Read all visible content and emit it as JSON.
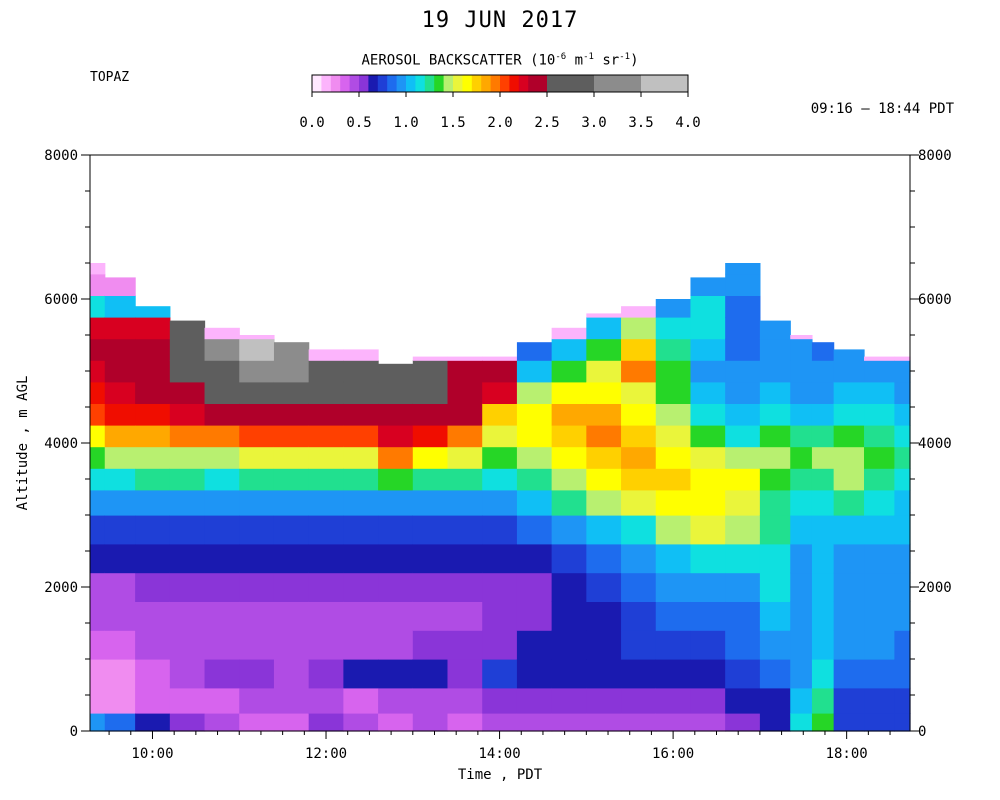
{
  "title": "19 JUN 2017",
  "site": "TOPAZ",
  "time_range": "09:16 – 18:44 PDT",
  "colorbar": {
    "title_main": "AEROSOL BACKSCATTER (10",
    "title_exp1": "-6",
    "title_mid": " m",
    "title_exp2": "-1",
    "title_mid2": " sr",
    "title_exp3": "-1",
    "title_end": ")",
    "tick_labels": [
      "0.0",
      "0.5",
      "1.0",
      "1.5",
      "2.0",
      "2.5",
      "3.0",
      "3.5",
      "4.0"
    ],
    "bins": [
      {
        "lo": 0.0,
        "hi": 0.1,
        "color": "#ffe8ff"
      },
      {
        "lo": 0.1,
        "hi": 0.2,
        "color": "#fcb4fc"
      },
      {
        "lo": 0.2,
        "hi": 0.3,
        "color": "#f08cf0"
      },
      {
        "lo": 0.3,
        "hi": 0.4,
        "color": "#d764ee"
      },
      {
        "lo": 0.4,
        "hi": 0.5,
        "color": "#b04ce4"
      },
      {
        "lo": 0.5,
        "hi": 0.6,
        "color": "#8a35d8"
      },
      {
        "lo": 0.6,
        "hi": 0.7,
        "color": "#1a1ab0"
      },
      {
        "lo": 0.7,
        "hi": 0.8,
        "color": "#1f3fd6"
      },
      {
        "lo": 0.8,
        "hi": 0.9,
        "color": "#1e6cee"
      },
      {
        "lo": 0.9,
        "hi": 1.0,
        "color": "#1e95f5"
      },
      {
        "lo": 1.0,
        "hi": 1.1,
        "color": "#10bff5"
      },
      {
        "lo": 1.1,
        "hi": 1.2,
        "color": "#0fe0e0"
      },
      {
        "lo": 1.2,
        "hi": 1.3,
        "color": "#21e08f"
      },
      {
        "lo": 1.3,
        "hi": 1.4,
        "color": "#26d626"
      },
      {
        "lo": 1.4,
        "hi": 1.5,
        "color": "#b8f070"
      },
      {
        "lo": 1.5,
        "hi": 1.6,
        "color": "#eaf53b"
      },
      {
        "lo": 1.6,
        "hi": 1.7,
        "color": "#ffff00"
      },
      {
        "lo": 1.7,
        "hi": 1.8,
        "color": "#ffd000"
      },
      {
        "lo": 1.8,
        "hi": 1.9,
        "color": "#ffa800"
      },
      {
        "lo": 1.9,
        "hi": 2.0,
        "color": "#ff7a00"
      },
      {
        "lo": 2.0,
        "hi": 2.1,
        "color": "#ff4000"
      },
      {
        "lo": 2.1,
        "hi": 2.2,
        "color": "#f00d00"
      },
      {
        "lo": 2.2,
        "hi": 2.3,
        "color": "#d80020"
      },
      {
        "lo": 2.3,
        "hi": 2.5,
        "color": "#b0002a"
      },
      {
        "lo": 2.5,
        "hi": 3.0,
        "color": "#5e5e5e"
      },
      {
        "lo": 3.0,
        "hi": 3.5,
        "color": "#8c8c8c"
      },
      {
        "lo": 3.5,
        "hi": 4.0,
        "color": "#c0c0c0"
      }
    ]
  },
  "chart_data": {
    "type": "heatmap",
    "title": "19 JUN 2017",
    "xlabel": "Time , PDT",
    "ylabel": "Altitude , m AGL",
    "x_range_hours": [
      9.28,
      18.73
    ],
    "x_ticks": [
      "10:00",
      "12:00",
      "14:00",
      "16:00",
      "18:00"
    ],
    "x_tick_hours": [
      10,
      12,
      14,
      16,
      18
    ],
    "y_range_m": [
      0,
      8000
    ],
    "y_ticks": [
      0,
      2000,
      4000,
      6000,
      8000
    ],
    "y_tick_labels": [
      "0",
      "2000",
      "4000",
      "6000",
      "8000"
    ],
    "value_units": "10^-6 m^-1 sr^-1",
    "profile_times": [
      9.3,
      9.6,
      10.0,
      10.4,
      10.8,
      11.2,
      11.6,
      12.0,
      12.4,
      12.8,
      13.2,
      13.6,
      14.0,
      14.4,
      14.8,
      15.2,
      15.6,
      16.0,
      16.4,
      16.8,
      17.2,
      17.5,
      17.7,
      18.0,
      18.4,
      18.7
    ],
    "data_top_m": [
      6500,
      6300,
      5900,
      5700,
      5600,
      5500,
      5400,
      5300,
      5300,
      5100,
      5200,
      5200,
      5200,
      5400,
      5600,
      5800,
      5900,
      6000,
      6300,
      6500,
      5700,
      5500,
      5400,
      5300,
      5200,
      5200
    ],
    "height_levels_m": [
      100,
      400,
      800,
      1200,
      1600,
      2000,
      2400,
      2800,
      3200,
      3500,
      3800,
      4100,
      4400,
      4700,
      5000,
      5300,
      5600,
      5900,
      6200,
      6500
    ],
    "backscatter_profiles": [
      [
        0.9,
        0.2,
        0.2,
        0.3,
        0.4,
        0.4,
        0.6,
        0.7,
        0.9,
        1.1,
        1.3,
        1.6,
        2.0,
        2.1,
        2.2,
        2.3,
        2.2,
        1.1,
        0.2,
        0.1
      ],
      [
        0.8,
        0.2,
        0.2,
        0.3,
        0.4,
        0.4,
        0.6,
        0.7,
        0.9,
        1.1,
        1.4,
        1.8,
        2.1,
        2.2,
        2.3,
        2.3,
        2.2,
        1.0,
        0.2,
        0.1
      ],
      [
        0.6,
        0.3,
        0.3,
        0.4,
        0.4,
        0.5,
        0.6,
        0.7,
        0.9,
        1.2,
        1.4,
        1.8,
        2.1,
        2.3,
        2.4,
        2.4,
        2.2,
        1.0,
        0.1,
        0.1
      ],
      [
        0.5,
        0.3,
        0.4,
        0.4,
        0.4,
        0.5,
        0.6,
        0.7,
        0.9,
        1.2,
        1.4,
        1.9,
        2.2,
        2.4,
        2.6,
        2.7,
        2.6,
        0.1,
        0.1,
        0.1
      ],
      [
        0.4,
        0.3,
        0.5,
        0.4,
        0.4,
        0.5,
        0.6,
        0.7,
        0.9,
        1.1,
        1.4,
        1.9,
        2.3,
        2.6,
        2.8,
        3.1,
        0.1,
        0.1,
        0.1,
        0.1
      ],
      [
        0.3,
        0.4,
        0.5,
        0.4,
        0.4,
        0.5,
        0.6,
        0.7,
        0.9,
        1.2,
        1.5,
        2.0,
        2.3,
        2.6,
        3.1,
        3.6,
        0.1,
        0.1,
        0.1,
        0.1
      ],
      [
        0.3,
        0.4,
        0.4,
        0.4,
        0.4,
        0.5,
        0.6,
        0.7,
        0.9,
        1.2,
        1.5,
        2.0,
        2.4,
        2.7,
        3.0,
        3.4,
        0.1,
        0.1,
        0.1,
        0.1
      ],
      [
        0.5,
        0.4,
        0.5,
        0.4,
        0.4,
        0.5,
        0.6,
        0.7,
        0.9,
        1.2,
        1.5,
        2.0,
        2.4,
        2.7,
        2.8,
        0.1,
        0.1,
        0.1,
        0.1,
        0.1
      ],
      [
        0.4,
        0.3,
        0.6,
        0.4,
        0.4,
        0.5,
        0.6,
        0.7,
        0.9,
        1.2,
        1.5,
        2.0,
        2.4,
        2.7,
        2.8,
        0.1,
        0.1,
        0.1,
        0.1,
        0.1
      ],
      [
        0.3,
        0.4,
        0.6,
        0.4,
        0.4,
        0.5,
        0.6,
        0.7,
        0.9,
        1.3,
        1.9,
        2.2,
        2.4,
        2.7,
        2.8,
        0.1,
        0.1,
        0.1,
        0.1,
        0.1
      ],
      [
        0.4,
        0.4,
        0.6,
        0.5,
        0.4,
        0.5,
        0.6,
        0.7,
        0.9,
        1.2,
        1.6,
        2.1,
        2.4,
        2.8,
        2.8,
        0.1,
        0.1,
        0.1,
        0.1,
        0.1
      ],
      [
        0.3,
        0.4,
        0.5,
        0.5,
        0.4,
        0.5,
        0.6,
        0.7,
        0.9,
        1.2,
        1.5,
        1.9,
        2.3,
        2.4,
        2.4,
        0.1,
        0.1,
        0.1,
        0.1,
        0.1
      ],
      [
        0.4,
        0.5,
        0.7,
        0.5,
        0.5,
        0.5,
        0.6,
        0.7,
        0.9,
        1.1,
        1.3,
        1.5,
        1.7,
        2.2,
        2.3,
        0.1,
        0.1,
        0.1,
        0.1,
        0.1
      ],
      [
        0.4,
        0.5,
        0.6,
        0.6,
        0.5,
        0.5,
        0.6,
        0.8,
        1.0,
        1.2,
        1.4,
        1.6,
        1.6,
        1.4,
        1.0,
        0.8,
        0.1,
        0.1,
        0.1,
        0.1
      ],
      [
        0.4,
        0.5,
        0.6,
        0.6,
        0.6,
        0.6,
        0.7,
        0.9,
        1.2,
        1.4,
        1.6,
        1.7,
        1.8,
        1.6,
        1.3,
        1.0,
        0.1,
        0.1,
        0.1,
        0.1
      ],
      [
        0.4,
        0.5,
        0.6,
        0.6,
        0.6,
        0.7,
        0.8,
        1.0,
        1.4,
        1.6,
        1.7,
        1.9,
        1.8,
        1.6,
        1.5,
        1.3,
        1.0,
        0.1,
        0.1,
        0.1
      ],
      [
        0.4,
        0.5,
        0.6,
        0.7,
        0.7,
        0.8,
        0.9,
        1.1,
        1.5,
        1.7,
        1.8,
        1.7,
        1.6,
        1.5,
        1.9,
        1.7,
        1.4,
        0.1,
        0.1,
        0.1
      ],
      [
        0.4,
        0.5,
        0.6,
        0.7,
        0.8,
        0.9,
        1.0,
        1.4,
        1.6,
        1.7,
        1.6,
        1.5,
        1.4,
        1.3,
        1.3,
        1.2,
        1.1,
        0.9,
        0.1,
        0.1
      ],
      [
        0.4,
        0.5,
        0.6,
        0.7,
        0.8,
        0.9,
        1.1,
        1.5,
        1.6,
        1.6,
        1.5,
        1.3,
        1.1,
        1.0,
        0.9,
        1.0,
        1.1,
        1.1,
        0.9,
        0.1
      ],
      [
        0.5,
        0.6,
        0.7,
        0.8,
        0.8,
        0.9,
        1.1,
        1.4,
        1.5,
        1.6,
        1.4,
        1.1,
        1.0,
        0.9,
        0.9,
        0.8,
        0.8,
        0.8,
        0.9,
        0.9
      ],
      [
        0.6,
        0.6,
        0.8,
        0.9,
        1.0,
        1.1,
        1.1,
        1.2,
        1.2,
        1.3,
        1.4,
        1.3,
        1.1,
        1.0,
        0.9,
        0.9,
        0.9,
        0.1,
        0.1,
        0.1
      ],
      [
        1.1,
        1.0,
        0.9,
        0.9,
        0.9,
        0.9,
        0.9,
        1.0,
        1.1,
        1.2,
        1.3,
        1.2,
        1.0,
        0.9,
        0.9,
        0.9,
        0.1,
        0.1,
        0.1,
        0.1
      ],
      [
        1.3,
        1.2,
        1.1,
        1.0,
        1.0,
        1.0,
        1.0,
        1.0,
        1.1,
        1.2,
        1.4,
        1.2,
        1.0,
        0.9,
        0.9,
        0.8,
        0.1,
        0.1,
        0.1,
        0.1
      ],
      [
        0.7,
        0.7,
        0.8,
        0.9,
        0.9,
        0.9,
        0.9,
        1.0,
        1.2,
        1.4,
        1.4,
        1.3,
        1.1,
        1.0,
        0.9,
        0.9,
        0.1,
        0.1,
        0.1,
        0.1
      ],
      [
        0.7,
        0.7,
        0.8,
        0.9,
        0.9,
        0.9,
        0.9,
        1.0,
        1.1,
        1.2,
        1.3,
        1.2,
        1.1,
        1.0,
        0.9,
        0.1,
        0.1,
        0.1,
        0.1,
        0.1
      ],
      [
        0.7,
        0.7,
        0.8,
        0.8,
        0.9,
        0.9,
        0.9,
        1.0,
        1.0,
        1.1,
        1.2,
        1.1,
        1.0,
        0.9,
        0.9,
        0.1,
        0.1,
        0.1,
        0.1,
        0.1
      ]
    ]
  }
}
